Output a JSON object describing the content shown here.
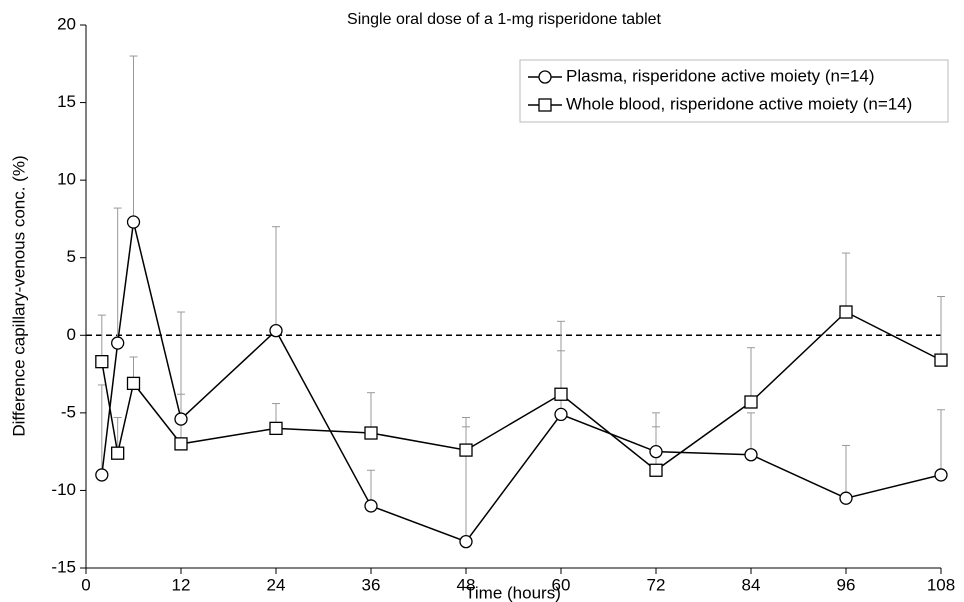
{
  "chart_data": {
    "type": "line",
    "title": "Single oral dose of a 1-mg risperidone tablet",
    "xlabel": "Time (hours)",
    "ylabel": "Difference capillary-venous conc. (%)",
    "x": [
      2,
      4,
      6,
      12,
      24,
      36,
      48,
      60,
      72,
      84,
      96,
      108
    ],
    "series": [
      {
        "name": "Plasma, risperidone active moiety (n=14)",
        "color": "#000000",
        "marker": "circle",
        "values": [
          -9.0,
          -0.5,
          7.3,
          -5.4,
          0.3,
          -11.0,
          -13.3,
          -5.1,
          -7.5,
          -7.7,
          -10.5,
          -9.0
        ],
        "errors": [
          5.8,
          8.7,
          10.7,
          6.9,
          6.7,
          2.3,
          8.0,
          6.0,
          2.5,
          2.7,
          3.4,
          4.2
        ]
      },
      {
        "name": "Whole blood, risperidone active moiety (n=14)",
        "color": "#000000",
        "marker": "square",
        "values": [
          -1.7,
          -7.6,
          -3.1,
          -7.0,
          -6.0,
          -6.3,
          -7.4,
          -3.8,
          -8.7,
          -4.3,
          1.5,
          -1.6
        ],
        "errors": [
          3.0,
          2.3,
          1.7,
          3.2,
          1.6,
          2.6,
          1.5,
          2.8,
          2.8,
          3.5,
          3.8,
          4.1
        ]
      }
    ],
    "xlim": [
      0,
      108
    ],
    "xticks": [
      0,
      12,
      24,
      36,
      48,
      60,
      72,
      84,
      96,
      108
    ],
    "ylim": [
      -15,
      20
    ],
    "yticks": [
      -15,
      -10,
      -5,
      0,
      5,
      10,
      15,
      20
    ],
    "reference_line": 0,
    "legend": "upper right",
    "grid": false
  }
}
